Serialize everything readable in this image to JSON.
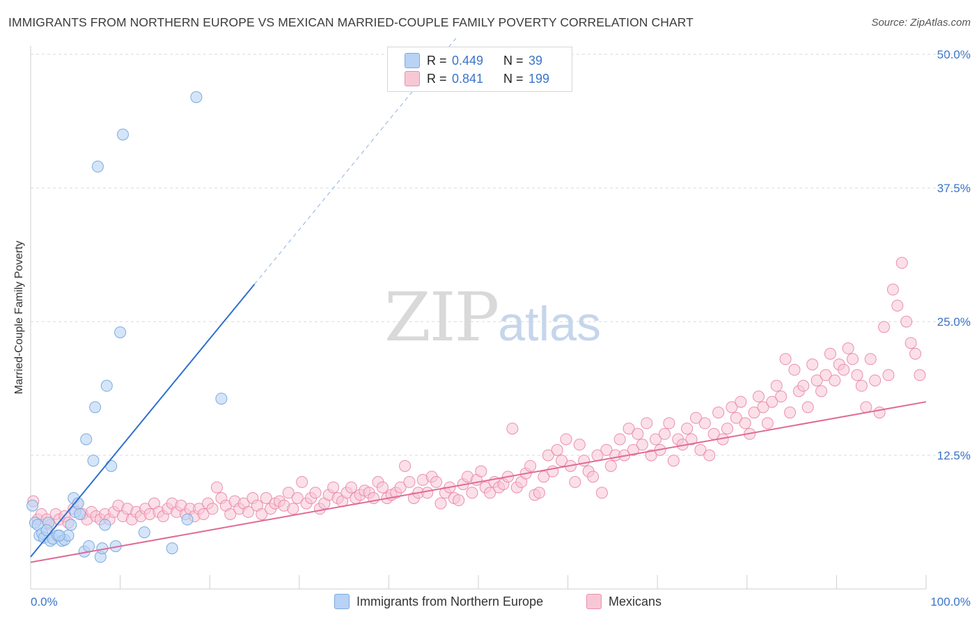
{
  "header": {
    "title": "IMMIGRANTS FROM NORTHERN EUROPE VS MEXICAN MARRIED-COUPLE FAMILY POVERTY CORRELATION CHART",
    "source": "Source: ZipAtlas.com"
  },
  "watermark": {
    "zip": "ZIP",
    "atlas": "atlas"
  },
  "legend": {
    "rows": [
      {
        "r_label": "R =",
        "r_value": "0.449",
        "n_label": "N =",
        "n_value": "39"
      },
      {
        "r_label": "R =",
        "r_value": "0.841",
        "n_label": "N =",
        "n_value": "199"
      }
    ]
  },
  "colors": {
    "blue_fill": "#b8d3f5",
    "blue_stroke": "#7ea9de",
    "blue_line": "#2e6fd0",
    "pink_fill": "#f8c7d6",
    "pink_stroke": "#ea8fae",
    "pink_line": "#e06a96",
    "tick_label": "#3a74c8",
    "grid": "#d8d8d8"
  },
  "chart_data": {
    "type": "scatter",
    "title": "IMMIGRANTS FROM NORTHERN EUROPE VS MEXICAN MARRIED-COUPLE FAMILY POVERTY CORRELATION CHART",
    "xlabel": "",
    "ylabel": "Married-Couple Family Poverty",
    "xlim": [
      0,
      100
    ],
    "ylim": [
      0,
      50
    ],
    "x_tick_labels": [
      "0.0%",
      "100.0%"
    ],
    "y_ticks": [
      12.5,
      25.0,
      37.5,
      50.0
    ],
    "y_tick_labels": [
      "12.5%",
      "25.0%",
      "37.5%",
      "50.0%"
    ],
    "grid": true,
    "legend_position": "bottom",
    "series": [
      {
        "name": "Immigrants from Northern Europe",
        "color": "blue",
        "R": 0.449,
        "N": 39,
        "trend": {
          "x0": 0,
          "y0": 3.0,
          "x1": 25,
          "y1": 28.5,
          "dash_to_x": 47.5,
          "dash_to_y": 51.5
        },
        "points": [
          [
            0.2,
            7.8
          ],
          [
            0.5,
            6.2
          ],
          [
            0.8,
            6.0
          ],
          [
            1.0,
            5.0
          ],
          [
            1.3,
            5.2
          ],
          [
            1.5,
            4.8
          ],
          [
            2.0,
            6.2
          ],
          [
            2.2,
            4.5
          ],
          [
            2.5,
            4.7
          ],
          [
            3.0,
            5.0
          ],
          [
            3.5,
            4.5
          ],
          [
            3.8,
            4.6
          ],
          [
            4.2,
            5.0
          ],
          [
            4.5,
            6.0
          ],
          [
            4.8,
            8.5
          ],
          [
            5.0,
            7.2
          ],
          [
            5.3,
            8.0
          ],
          [
            5.5,
            7.0
          ],
          [
            6.0,
            3.5
          ],
          [
            6.5,
            4.0
          ],
          [
            7.0,
            12.0
          ],
          [
            7.5,
            39.5
          ],
          [
            7.8,
            3.0
          ],
          [
            8.0,
            3.8
          ],
          [
            8.3,
            6.0
          ],
          [
            8.5,
            19.0
          ],
          [
            9.0,
            11.5
          ],
          [
            9.5,
            4.0
          ],
          [
            10.0,
            24.0
          ],
          [
            10.3,
            42.5
          ],
          [
            7.2,
            17.0
          ],
          [
            6.2,
            14.0
          ],
          [
            12.7,
            5.3
          ],
          [
            15.8,
            3.8
          ],
          [
            17.5,
            6.5
          ],
          [
            18.5,
            46.0
          ],
          [
            21.3,
            17.8
          ],
          [
            3.2,
            5.0
          ],
          [
            1.8,
            5.5
          ]
        ]
      },
      {
        "name": "Mexicans",
        "color": "pink",
        "R": 0.841,
        "N": 199,
        "trend": {
          "x0": 0,
          "y0": 2.5,
          "x1": 100,
          "y1": 17.5
        },
        "points": [
          [
            0.3,
            8.2
          ],
          [
            0.8,
            6.5
          ],
          [
            1.2,
            7.0
          ],
          [
            1.8,
            6.5
          ],
          [
            2.2,
            6.0
          ],
          [
            2.8,
            7.0
          ],
          [
            3.2,
            6.5
          ],
          [
            3.8,
            6.8
          ],
          [
            4.2,
            6.2
          ],
          [
            4.8,
            7.5
          ],
          [
            5.3,
            8.0
          ],
          [
            5.8,
            7.0
          ],
          [
            6.3,
            6.5
          ],
          [
            6.8,
            7.2
          ],
          [
            7.3,
            6.8
          ],
          [
            7.8,
            6.5
          ],
          [
            8.3,
            7.0
          ],
          [
            8.8,
            6.5
          ],
          [
            9.3,
            7.2
          ],
          [
            9.8,
            7.8
          ],
          [
            10.3,
            6.8
          ],
          [
            10.8,
            7.5
          ],
          [
            11.3,
            6.5
          ],
          [
            11.8,
            7.2
          ],
          [
            12.3,
            6.8
          ],
          [
            12.8,
            7.5
          ],
          [
            13.3,
            7.0
          ],
          [
            13.8,
            8.0
          ],
          [
            14.3,
            7.2
          ],
          [
            14.8,
            6.8
          ],
          [
            15.3,
            7.5
          ],
          [
            15.8,
            8.0
          ],
          [
            16.3,
            7.2
          ],
          [
            16.8,
            7.8
          ],
          [
            17.3,
            7.0
          ],
          [
            17.8,
            7.5
          ],
          [
            18.3,
            6.8
          ],
          [
            18.8,
            7.5
          ],
          [
            19.3,
            7.0
          ],
          [
            19.8,
            8.0
          ],
          [
            20.3,
            7.5
          ],
          [
            20.8,
            9.5
          ],
          [
            21.3,
            8.5
          ],
          [
            21.8,
            7.8
          ],
          [
            22.3,
            7.0
          ],
          [
            22.8,
            8.2
          ],
          [
            23.3,
            7.5
          ],
          [
            23.8,
            8.0
          ],
          [
            24.3,
            7.2
          ],
          [
            24.8,
            8.5
          ],
          [
            25.3,
            7.8
          ],
          [
            25.8,
            7.0
          ],
          [
            26.3,
            8.5
          ],
          [
            26.8,
            7.5
          ],
          [
            27.3,
            8.0
          ],
          [
            27.8,
            8.2
          ],
          [
            28.3,
            7.8
          ],
          [
            28.8,
            9.0
          ],
          [
            29.3,
            7.5
          ],
          [
            29.8,
            8.5
          ],
          [
            30.3,
            10.0
          ],
          [
            30.8,
            8.0
          ],
          [
            31.3,
            8.5
          ],
          [
            31.8,
            9.0
          ],
          [
            32.3,
            7.5
          ],
          [
            32.8,
            8.0
          ],
          [
            33.3,
            8.8
          ],
          [
            33.8,
            9.5
          ],
          [
            34.3,
            8.5
          ],
          [
            34.8,
            8.2
          ],
          [
            35.3,
            9.0
          ],
          [
            35.8,
            9.5
          ],
          [
            36.3,
            8.5
          ],
          [
            36.8,
            8.8
          ],
          [
            37.3,
            9.2
          ],
          [
            37.8,
            9.0
          ],
          [
            38.3,
            8.5
          ],
          [
            38.8,
            10.0
          ],
          [
            39.3,
            9.5
          ],
          [
            39.8,
            8.5
          ],
          [
            40.3,
            8.8
          ],
          [
            40.8,
            9.0
          ],
          [
            41.3,
            9.5
          ],
          [
            41.8,
            11.5
          ],
          [
            42.3,
            10.0
          ],
          [
            42.8,
            8.5
          ],
          [
            43.3,
            9.0
          ],
          [
            43.8,
            10.2
          ],
          [
            44.3,
            9.0
          ],
          [
            44.8,
            10.5
          ],
          [
            45.3,
            10.0
          ],
          [
            45.8,
            8.0
          ],
          [
            46.3,
            9.0
          ],
          [
            46.8,
            9.5
          ],
          [
            47.3,
            8.5
          ],
          [
            47.8,
            8.3
          ],
          [
            48.3,
            9.8
          ],
          [
            48.8,
            10.5
          ],
          [
            49.3,
            9.0
          ],
          [
            49.8,
            10.2
          ],
          [
            50.3,
            11.0
          ],
          [
            50.8,
            9.5
          ],
          [
            51.3,
            9.0
          ],
          [
            51.8,
            10.0
          ],
          [
            52.3,
            9.5
          ],
          [
            52.8,
            9.8
          ],
          [
            53.3,
            10.5
          ],
          [
            53.8,
            15.0
          ],
          [
            54.3,
            9.5
          ],
          [
            54.8,
            10.0
          ],
          [
            55.3,
            10.8
          ],
          [
            55.8,
            11.5
          ],
          [
            56.3,
            8.8
          ],
          [
            56.8,
            9.0
          ],
          [
            57.3,
            10.5
          ],
          [
            57.8,
            12.5
          ],
          [
            58.3,
            11.0
          ],
          [
            58.8,
            13.0
          ],
          [
            59.3,
            12.0
          ],
          [
            59.8,
            14.0
          ],
          [
            60.3,
            11.5
          ],
          [
            60.8,
            10.0
          ],
          [
            61.3,
            13.5
          ],
          [
            61.8,
            12.0
          ],
          [
            62.3,
            11.0
          ],
          [
            62.8,
            10.5
          ],
          [
            63.3,
            12.5
          ],
          [
            63.8,
            9.0
          ],
          [
            64.3,
            13.0
          ],
          [
            64.8,
            11.5
          ],
          [
            65.3,
            12.5
          ],
          [
            65.8,
            14.0
          ],
          [
            66.3,
            12.5
          ],
          [
            66.8,
            15.0
          ],
          [
            67.3,
            13.0
          ],
          [
            67.8,
            14.5
          ],
          [
            68.3,
            13.5
          ],
          [
            68.8,
            15.5
          ],
          [
            69.3,
            12.5
          ],
          [
            69.8,
            14.0
          ],
          [
            70.3,
            13.0
          ],
          [
            70.8,
            14.5
          ],
          [
            71.3,
            15.5
          ],
          [
            71.8,
            12.0
          ],
          [
            72.3,
            14.0
          ],
          [
            72.8,
            13.5
          ],
          [
            73.3,
            15.0
          ],
          [
            73.8,
            14.0
          ],
          [
            74.3,
            16.0
          ],
          [
            74.8,
            13.0
          ],
          [
            75.3,
            15.5
          ],
          [
            75.8,
            12.5
          ],
          [
            76.3,
            14.5
          ],
          [
            76.8,
            16.5
          ],
          [
            77.3,
            14.0
          ],
          [
            77.8,
            15.0
          ],
          [
            78.3,
            17.0
          ],
          [
            78.8,
            16.0
          ],
          [
            79.3,
            17.5
          ],
          [
            79.8,
            15.5
          ],
          [
            80.3,
            14.5
          ],
          [
            80.8,
            16.5
          ],
          [
            81.3,
            18.0
          ],
          [
            81.8,
            17.0
          ],
          [
            82.3,
            15.5
          ],
          [
            82.8,
            17.5
          ],
          [
            83.3,
            19.0
          ],
          [
            83.8,
            18.0
          ],
          [
            84.3,
            21.5
          ],
          [
            84.8,
            16.5
          ],
          [
            85.3,
            20.5
          ],
          [
            85.8,
            18.5
          ],
          [
            86.3,
            19.0
          ],
          [
            86.8,
            17.0
          ],
          [
            87.3,
            21.0
          ],
          [
            87.8,
            19.5
          ],
          [
            88.3,
            18.5
          ],
          [
            88.8,
            20.0
          ],
          [
            89.3,
            22.0
          ],
          [
            89.8,
            19.5
          ],
          [
            90.3,
            21.0
          ],
          [
            90.8,
            20.5
          ],
          [
            91.3,
            22.5
          ],
          [
            91.8,
            21.5
          ],
          [
            92.3,
            20.0
          ],
          [
            92.8,
            19.0
          ],
          [
            93.3,
            17.0
          ],
          [
            93.8,
            21.5
          ],
          [
            94.3,
            19.5
          ],
          [
            94.8,
            16.5
          ],
          [
            95.3,
            24.5
          ],
          [
            95.8,
            20.0
          ],
          [
            96.3,
            28.0
          ],
          [
            96.8,
            26.5
          ],
          [
            97.3,
            30.5
          ],
          [
            97.8,
            25.0
          ],
          [
            98.3,
            23.0
          ],
          [
            98.8,
            22.0
          ],
          [
            99.3,
            20.0
          ]
        ]
      }
    ]
  },
  "bottom_legend": {
    "items": [
      {
        "label": "Immigrants from Northern Europe"
      },
      {
        "label": "Mexicans"
      }
    ]
  }
}
